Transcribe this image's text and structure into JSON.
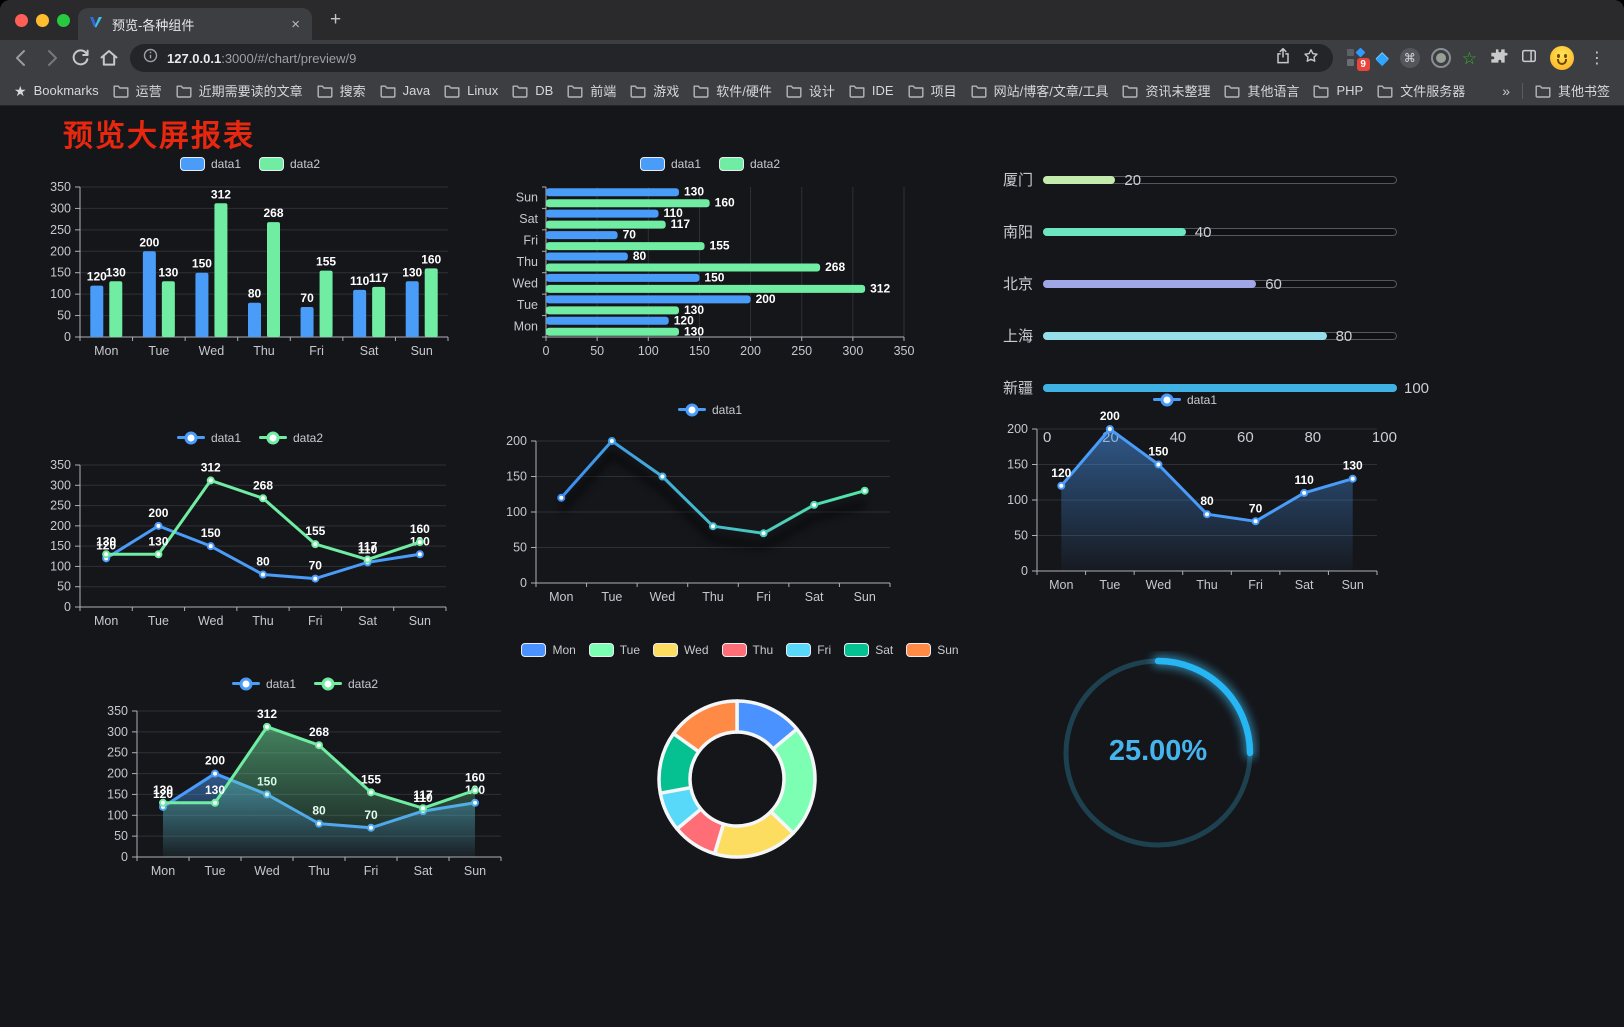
{
  "browser": {
    "tab": {
      "title": "预览-各种组件"
    },
    "url": {
      "host": "127.0.0.1",
      "rest": ":3000/#/chart/preview/9"
    },
    "extension_badge": "9",
    "icons": {
      "close": "×",
      "new_tab": "+",
      "cmd": "⌘",
      "more": "⋮",
      "gem": "◆",
      "star_filled": "★",
      "star_hollow": "☆",
      "chevrons": "»"
    },
    "bookmarks_bar": {
      "bookmarks_label": "Bookmarks",
      "folders": [
        "运营",
        "近期需要读的文章",
        "搜索",
        "Java",
        "Linux",
        "DB",
        "前端",
        "游戏",
        "软件/硬件",
        "设计",
        "IDE",
        "项目",
        "网站/博客/文章/工具",
        "资讯未整理",
        "其他语言",
        "PHP",
        "文件服务器"
      ],
      "overflow_glyph": "»",
      "other_bookmarks": "其他书签"
    }
  },
  "page": {
    "title": "预览大屏报表",
    "title_color": "#e8270f"
  },
  "chart_data": [
    {
      "name": "grouped-bar",
      "type": "bar",
      "categories": [
        "Mon",
        "Tue",
        "Wed",
        "Thu",
        "Fri",
        "Sat",
        "Sun"
      ],
      "series": [
        {
          "name": "data1",
          "color": "#4a9cf9",
          "values": [
            120,
            200,
            150,
            80,
            70,
            110,
            130
          ]
        },
        {
          "name": "data2",
          "color": "#70eda2",
          "values": [
            130,
            130,
            312,
            268,
            155,
            117,
            160
          ]
        }
      ],
      "ylim": [
        0,
        350
      ],
      "ystep": 50,
      "value_labels": true,
      "legend_position": "top"
    },
    {
      "name": "horizontal-bar",
      "type": "barh",
      "categories": [
        "Sun",
        "Sat",
        "Fri",
        "Thu",
        "Wed",
        "Tue",
        "Mon"
      ],
      "series": [
        {
          "name": "data1",
          "color": "#4a9cf9",
          "values": [
            130,
            110,
            70,
            80,
            150,
            200,
            120
          ]
        },
        {
          "name": "data2",
          "color": "#70eda2",
          "values": [
            160,
            117,
            155,
            268,
            312,
            130,
            130
          ]
        }
      ],
      "xlim": [
        0,
        350
      ],
      "xstep": 50,
      "value_labels": true,
      "legend_position": "top"
    },
    {
      "name": "progress-bars",
      "type": "progress",
      "max": 100,
      "xticks": [
        0,
        20,
        40,
        60,
        80,
        100
      ],
      "items": [
        {
          "label": "厦门",
          "value": 20,
          "color": "#c4ebad"
        },
        {
          "label": "南阳",
          "value": 40,
          "color": "#6be6c1"
        },
        {
          "label": "北京",
          "value": 60,
          "color": "#a0a7e6"
        },
        {
          "label": "上海",
          "value": 80,
          "color": "#96dee8"
        },
        {
          "label": "新疆",
          "value": 100,
          "color": "#3fb1e3"
        }
      ]
    },
    {
      "name": "two-line",
      "type": "line",
      "categories": [
        "Mon",
        "Tue",
        "Wed",
        "Thu",
        "Fri",
        "Sat",
        "Sun"
      ],
      "series": [
        {
          "name": "data1",
          "color": "#4a9cf9",
          "values": [
            120,
            200,
            150,
            80,
            70,
            110,
            130
          ]
        },
        {
          "name": "data2",
          "color": "#70eda2",
          "values": [
            130,
            130,
            312,
            268,
            155,
            117,
            160
          ]
        }
      ],
      "ylim": [
        0,
        350
      ],
      "ystep": 50,
      "value_labels": true,
      "legend_position": "top"
    },
    {
      "name": "gradient-line",
      "type": "line",
      "shadow": true,
      "categories": [
        "Mon",
        "Tue",
        "Wed",
        "Thu",
        "Fri",
        "Sat",
        "Sun"
      ],
      "series": [
        {
          "name": "data1",
          "color": "#4a9cf9",
          "gradient": [
            "#3a8ef1",
            "#52e9a5"
          ],
          "values": [
            120,
            200,
            150,
            80,
            70,
            110,
            130
          ]
        }
      ],
      "ylim": [
        0,
        200
      ],
      "ystep": 50,
      "value_labels": false,
      "legend_position": "top"
    },
    {
      "name": "area-line",
      "type": "line",
      "area": true,
      "categories": [
        "Mon",
        "Tue",
        "Wed",
        "Thu",
        "Fri",
        "Sat",
        "Sun"
      ],
      "series": [
        {
          "name": "data1",
          "color": "#4a9cf9",
          "values": [
            120,
            200,
            150,
            80,
            70,
            110,
            130
          ]
        }
      ],
      "ylim": [
        0,
        200
      ],
      "ystep": 50,
      "value_labels": true,
      "legend_position": "top"
    },
    {
      "name": "two-area-line",
      "type": "line",
      "area": true,
      "categories": [
        "Mon",
        "Tue",
        "Wed",
        "Thu",
        "Fri",
        "Sat",
        "Sun"
      ],
      "series": [
        {
          "name": "data1",
          "color": "#4a9cf9",
          "values": [
            120,
            200,
            150,
            80,
            70,
            110,
            130
          ]
        },
        {
          "name": "data2",
          "color": "#70eda2",
          "values": [
            130,
            130,
            312,
            268,
            155,
            117,
            160
          ]
        }
      ],
      "ylim": [
        0,
        350
      ],
      "ystep": 50,
      "value_labels": true,
      "legend_position": "top"
    },
    {
      "name": "donut",
      "type": "pie",
      "legend_position": "top",
      "items": [
        {
          "label": "Mon",
          "value": 120,
          "color": "#4992ff"
        },
        {
          "label": "Tue",
          "value": 200,
          "color": "#7cffb2"
        },
        {
          "label": "Wed",
          "value": 150,
          "color": "#fddd60"
        },
        {
          "label": "Thu",
          "value": 80,
          "color": "#ff6e76"
        },
        {
          "label": "Fri",
          "value": 70,
          "color": "#58d9f9"
        },
        {
          "label": "Sat",
          "value": 110,
          "color": "#05c091"
        },
        {
          "label": "Sun",
          "value": 130,
          "color": "#ff8a45"
        }
      ]
    },
    {
      "name": "gauge",
      "type": "gauge",
      "percent": 25,
      "label": "25.00%",
      "arc_color": "#25b6f3",
      "glow_color": "#3ec6ff",
      "track_color": "#1e4150",
      "text_color": "#46b5ee"
    }
  ]
}
